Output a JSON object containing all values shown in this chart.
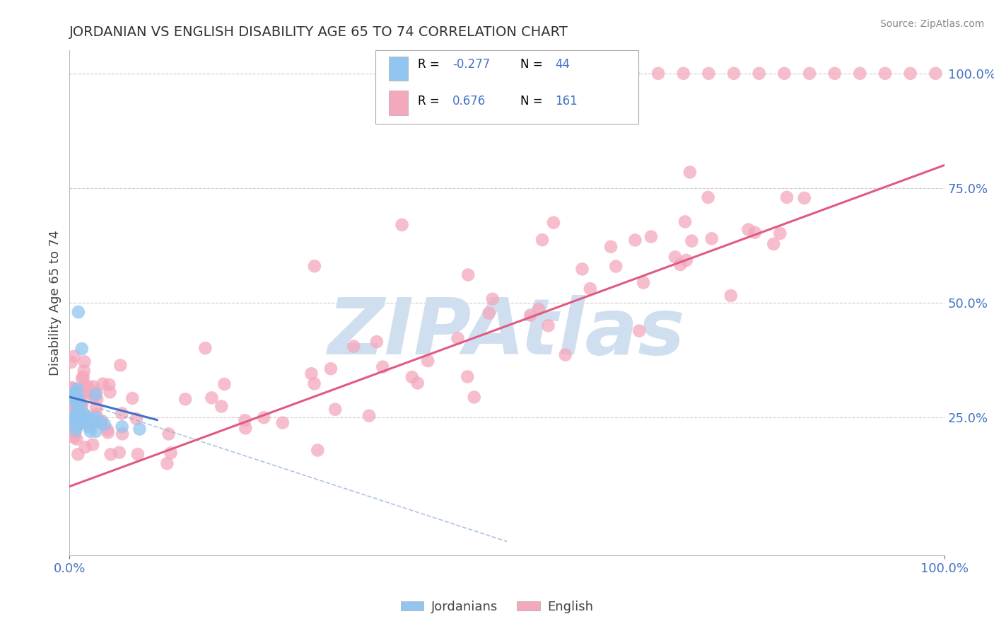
{
  "title": "JORDANIAN VS ENGLISH DISABILITY AGE 65 TO 74 CORRELATION CHART",
  "source_text": "Source: ZipAtlas.com",
  "ylabel": "Disability Age 65 to 74",
  "xlim": [
    0.0,
    1.0
  ],
  "ylim": [
    -0.05,
    1.05
  ],
  "ytick_positions": [
    0.25,
    0.5,
    0.75,
    1.0
  ],
  "ytick_labels": [
    "25.0%",
    "50.0%",
    "75.0%",
    "100.0%"
  ],
  "xtick_positions": [
    0.0,
    1.0
  ],
  "xtick_labels": [
    "0.0%",
    "100.0%"
  ],
  "jordan_R": -0.277,
  "jordan_N": 44,
  "english_R": 0.676,
  "english_N": 161,
  "jordan_color": "#92c5f0",
  "english_color": "#f4a8bc",
  "jordan_line_color": "#4472c4",
  "english_line_color": "#e05a82",
  "jordan_dashed_color": "#90aad4",
  "watermark_text": "ZIPAtlas",
  "watermark_color": "#d0dff0",
  "legend_label_jordan": "Jordanians",
  "legend_label_english": "English",
  "background_color": "#ffffff",
  "grid_color": "#c8c8c8",
  "title_color": "#333333",
  "axis_label_color": "#444444",
  "tick_label_color": "#4472c4",
  "stat_number_color": "#4472c4",
  "source_color": "#888888",
  "english_line": {
    "x0": 0.0,
    "y0": 0.1,
    "x1": 1.0,
    "y1": 0.8
  },
  "jordan_line": {
    "x0": 0.0,
    "y0": 0.295,
    "x1": 0.1,
    "y1": 0.245
  },
  "jordan_dashed_line": {
    "x0": 0.035,
    "y0": 0.27,
    "x1": 0.5,
    "y1": -0.02
  }
}
